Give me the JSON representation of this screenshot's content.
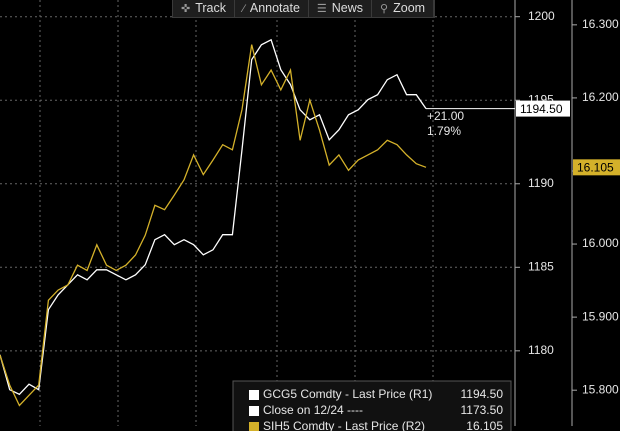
{
  "chart_data": {
    "type": "line",
    "series": [
      {
        "name": "GCG5 Comdty - Last Price (R1)",
        "color": "#ffffff",
        "axis": "y",
        "values": [
          1179.76,
          1177.67,
          1177.4,
          1178.0,
          1177.67,
          1182.46,
          1183.35,
          1183.95,
          1184.55,
          1184.25,
          1184.85,
          1184.85,
          1184.55,
          1184.25,
          1184.55,
          1185.15,
          1186.65,
          1186.95,
          1186.35,
          1186.65,
          1186.35,
          1185.75,
          1186.05,
          1186.95,
          1186.95,
          1192.04,
          1197.43,
          1198.32,
          1198.62,
          1196.83,
          1195.93,
          1194.43,
          1193.83,
          1194.13,
          1192.63,
          1193.23,
          1194.13,
          1194.43,
          1195.03,
          1195.33,
          1196.23,
          1196.53,
          1195.33,
          1195.33,
          1194.5
        ],
        "last_label": "1194.50"
      },
      {
        "name": "SIH5 Comdty - Last Price (R2)",
        "color": "#d4b12a",
        "axis": "y2",
        "values": [
          15.848,
          15.807,
          15.779,
          15.793,
          15.807,
          15.923,
          15.937,
          15.944,
          15.971,
          15.964,
          15.999,
          15.971,
          15.964,
          15.971,
          15.985,
          16.012,
          16.053,
          16.047,
          16.067,
          16.088,
          16.122,
          16.095,
          16.115,
          16.136,
          16.129,
          16.184,
          16.273,
          16.218,
          16.238,
          16.211,
          16.238,
          16.142,
          16.197,
          16.156,
          16.108,
          16.122,
          16.101,
          16.115,
          16.122,
          16.129,
          16.142,
          16.136,
          16.122,
          16.11,
          16.105
        ],
        "last_label": "16.105"
      }
    ],
    "ylim": [
      1175.5,
      1201.0
    ],
    "yticks": [
      1180,
      1185,
      1190,
      1195,
      1200
    ],
    "y2lim": [
      15.751,
      16.334
    ],
    "y2ticks": [
      {
        "value": 15.8,
        "label": "15.800"
      },
      {
        "value": 15.9,
        "label": "15.900"
      },
      {
        "value": 16.0,
        "label": "16.000"
      },
      {
        "value": 16.1,
        "label": "16.100"
      },
      {
        "value": 16.2,
        "label": "16.200"
      },
      {
        "value": 16.3,
        "label": "16.300"
      }
    ],
    "grid": true,
    "annotations": [
      "+21.00",
      "1.79%"
    ],
    "legend": [
      {
        "name": "GCG5 Comdty - Last Price (R1)",
        "value": "1194.50"
      },
      {
        "name": "Close on 12/24 ----",
        "value": "1173.50"
      },
      {
        "name": "SIH5 Comdty - Last Price (R2)",
        "value": "16.105"
      }
    ]
  },
  "toolbar": [
    "Track",
    "Annotate",
    "News",
    "Zoom"
  ]
}
